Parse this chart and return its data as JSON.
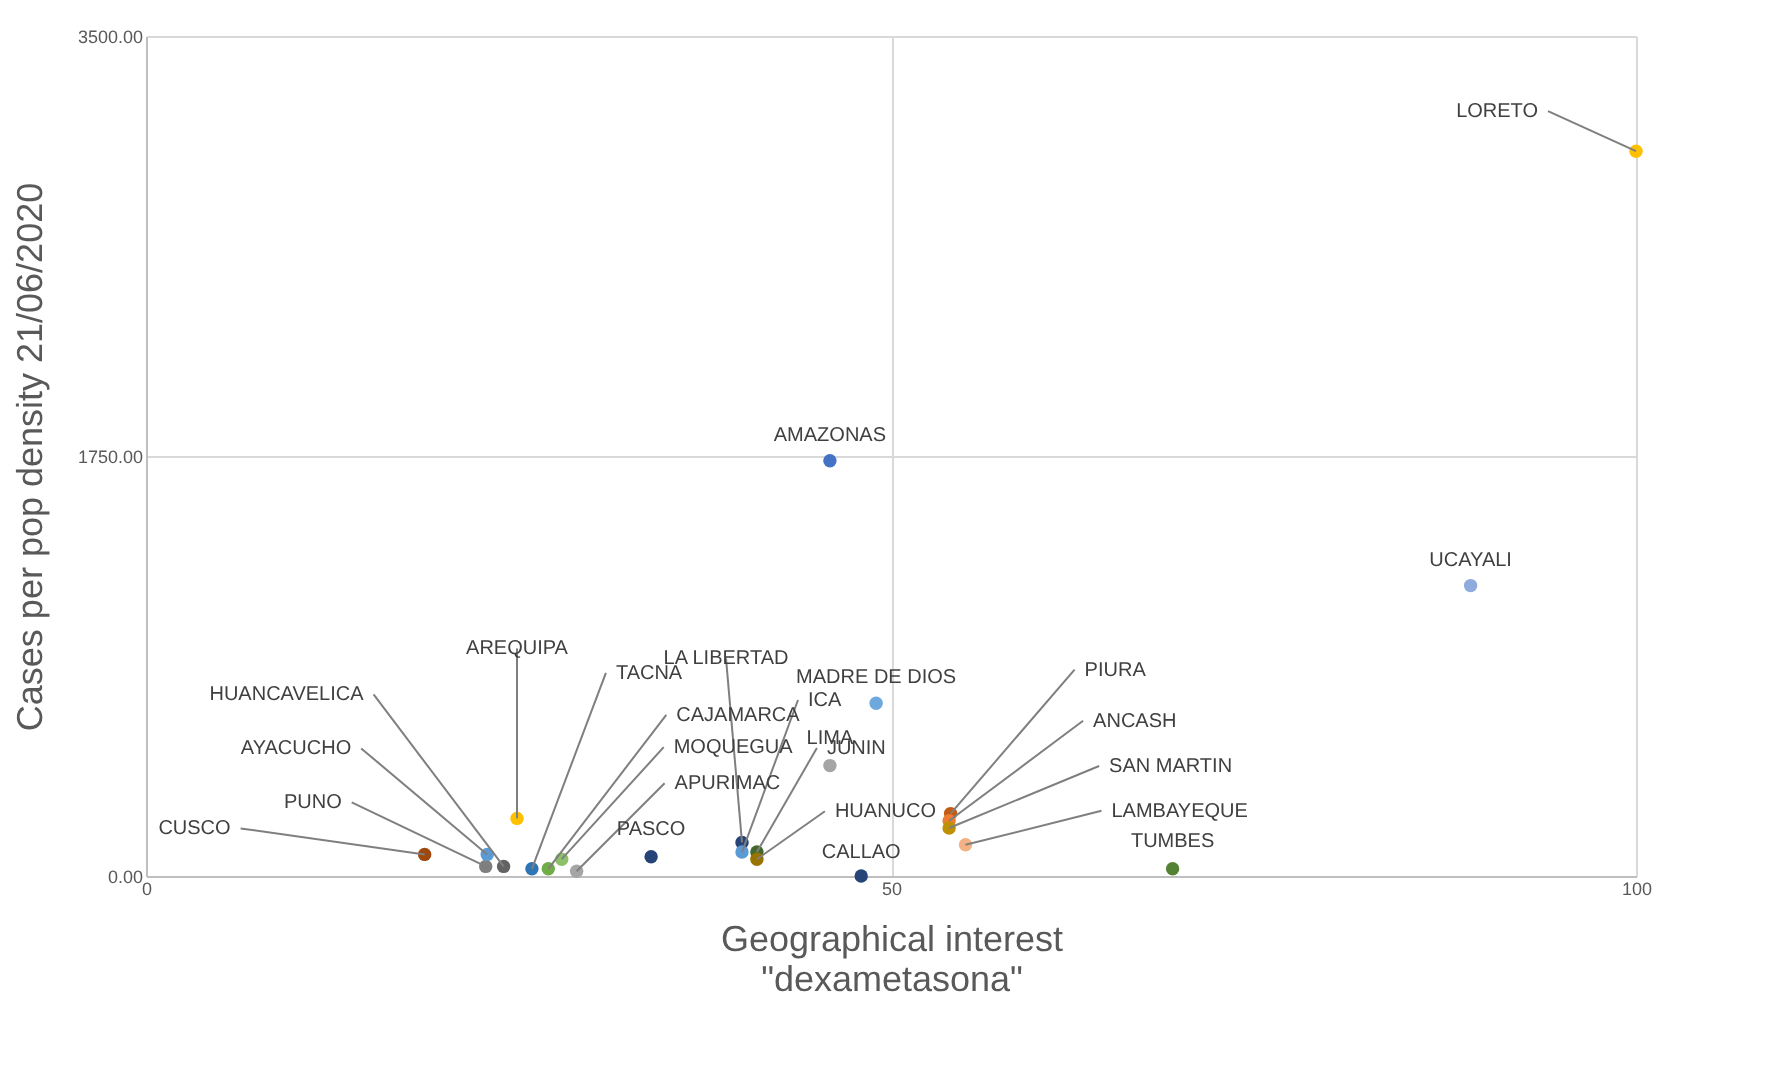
{
  "chart_data": {
    "type": "scatter",
    "xlabel": "Geographical interest\n\"dexametasona\"",
    "ylabel": "Cases per pop density 21/06/2020",
    "x": [
      18.7,
      22.8,
      22.9,
      24.0,
      24.9,
      25.9,
      27.0,
      27.9,
      28.9,
      33.9,
      40.0,
      40.0,
      41.0,
      41.0,
      45.9,
      49.0,
      48.0,
      45.9,
      54.0,
      53.9,
      53.9,
      55.0,
      68.9,
      88.9,
      100
    ],
    "values": [
      90,
      40,
      90,
      40,
      240,
      30,
      30,
      70,
      20,
      80,
      140,
      100,
      100,
      70,
      460,
      720,
      0,
      1730,
      260,
      230,
      200,
      130,
      30,
      1210,
      3020
    ],
    "colors": [
      "#9e480e",
      "#7f7f7f",
      "#5b9bd5",
      "#636363",
      "#ffc000",
      "#2e75b6",
      "#70ad47",
      "#8cc168",
      "#a5a5a5",
      "#264478",
      "#264478",
      "#5b9bd5",
      "#43682b",
      "#997300",
      "#a5a5a5",
      "#6fa8dc",
      "#264478",
      "#4472c4",
      "#c55a11",
      "#ed7d31",
      "#bf9000",
      "#f4b183",
      "#548235",
      "#8faadc",
      "#ffc000"
    ],
    "annotations": [
      {
        "text": "CUSCO",
        "x": 18.7,
        "y": 90
      },
      {
        "text": "PUNO",
        "x": 22.8,
        "y": 40
      },
      {
        "text": "AYACUCHO",
        "x": 22.9,
        "y": 90
      },
      {
        "text": "HUANCAVELICA",
        "x": 24.0,
        "y": 40
      },
      {
        "text": "AREQUIPA",
        "x": 24.9,
        "y": 240
      },
      {
        "text": "TACNA",
        "x": 25.9,
        "y": 30
      },
      {
        "text": "CAJAMARCA",
        "x": 27.0,
        "y": 30
      },
      {
        "text": "MOQUEGUA",
        "x": 27.9,
        "y": 70
      },
      {
        "text": "APURIMAC",
        "x": 28.9,
        "y": 20
      },
      {
        "text": "PASCO",
        "x": 33.9,
        "y": 80
      },
      {
        "text": "LA LIBERTAD",
        "x": 40.0,
        "y": 140
      },
      {
        "text": "ICA",
        "x": 40.0,
        "y": 100
      },
      {
        "text": "JUNIN",
        "x": 41.0,
        "y": 100
      },
      {
        "text": "HUANUCO",
        "x": 41.0,
        "y": 70
      },
      {
        "text": "LIMA",
        "x": 45.9,
        "y": 460
      },
      {
        "text": "MADRE DE DIOS",
        "x": 49.0,
        "y": 720
      },
      {
        "text": "CALLAO",
        "x": 48.0,
        "y": 0
      },
      {
        "text": "AMAZONAS",
        "x": 45.9,
        "y": 1730
      },
      {
        "text": "PIURA",
        "x": 54.0,
        "y": 260
      },
      {
        "text": "ANCASH",
        "x": 53.9,
        "y": 230
      },
      {
        "text": "SAN MARTIN",
        "x": 53.9,
        "y": 200
      },
      {
        "text": "LAMBAYEQUE",
        "x": 55.0,
        "y": 130
      },
      {
        "text": "TUMBES",
        "x": 68.9,
        "y": 30
      },
      {
        "text": "UCAYALI",
        "x": 88.9,
        "y": 1210
      },
      {
        "text": "LORETO",
        "x": 100,
        "y": 3020
      }
    ],
    "xlim": [
      0,
      100
    ],
    "xticks": [
      0,
      50,
      100
    ],
    "ylim": [
      0,
      3500
    ],
    "yticks": [
      {
        "value": 0,
        "label": "0.00"
      },
      {
        "value": 1750,
        "label": "1750.00"
      },
      {
        "value": 3500,
        "label": "3500.00"
      }
    ],
    "grid": true,
    "marker": "circle"
  }
}
